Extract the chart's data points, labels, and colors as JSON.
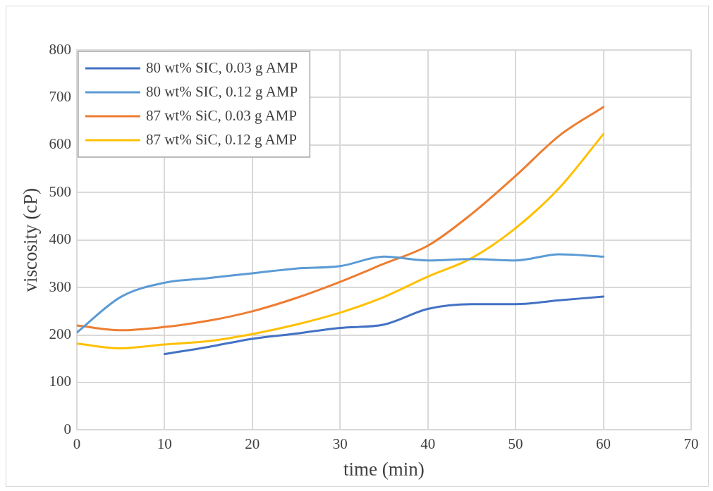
{
  "chart_data": {
    "type": "line",
    "xlabel": "time (min)",
    "ylabel": "viscosity (cP)",
    "x": [
      0,
      5,
      10,
      15,
      20,
      25,
      30,
      35,
      40,
      45,
      50,
      55,
      60
    ],
    "series": [
      {
        "name": "80 wt% SIC, 0.03 g AMP",
        "color": "#4472c4",
        "values": [
          null,
          null,
          160,
          175,
          192,
          203,
          215,
          222,
          255,
          265,
          265,
          273,
          281
        ]
      },
      {
        "name": "80 wt% SIC, 0.12 g AMP",
        "color": "#5b9bd5",
        "values": [
          205,
          280,
          310,
          320,
          330,
          340,
          345,
          365,
          357,
          360,
          357,
          370,
          365
        ]
      },
      {
        "name": "87 wt% SiC, 0.03 g AMP",
        "color": "#ed7d31",
        "values": [
          220,
          210,
          217,
          230,
          250,
          278,
          312,
          350,
          388,
          455,
          535,
          620,
          680
        ]
      },
      {
        "name": "87 wt% SiC, 0.12 g AMP",
        "color": "#ffc000",
        "values": [
          182,
          172,
          180,
          187,
          202,
          222,
          247,
          280,
          323,
          362,
          425,
          510,
          623
        ]
      }
    ],
    "xlim": [
      0,
      70
    ],
    "xticks": [
      0,
      10,
      20,
      30,
      40,
      50,
      60,
      70
    ],
    "ylim": [
      0,
      800
    ],
    "yticks": [
      0,
      100,
      200,
      300,
      400,
      500,
      600,
      700,
      800
    ],
    "grid": true,
    "legend": "top left",
    "marker": "none",
    "line_style": "solid"
  }
}
